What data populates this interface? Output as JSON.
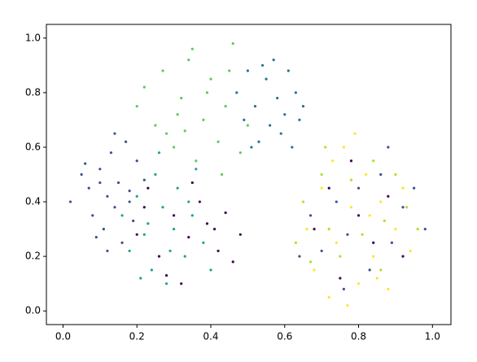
{
  "chart_data": {
    "type": "scatter",
    "xlim": [
      -0.045,
      1.05
    ],
    "ylim": [
      -0.05,
      1.05
    ],
    "xticks": [
      {
        "value": 0,
        "label": "0.0"
      },
      0.2,
      0.4,
      0.6,
      0.8,
      {
        "value": 1,
        "label": "1.0"
      }
    ],
    "yticks": [
      {
        "value": 0,
        "label": "0.0"
      },
      0.2,
      0.4,
      0.6,
      0.8,
      {
        "value": 1,
        "label": "1.0"
      }
    ],
    "series": [
      {
        "color": "#3b528b",
        "x": [
          0.02,
          0.05,
          0.07,
          0.08,
          0.1,
          0.11,
          0.12,
          0.13,
          0.14,
          0.15,
          0.16,
          0.17,
          0.18,
          0.19,
          0.2,
          0.22,
          0.09,
          0.06,
          0.14,
          0.12,
          0.18,
          0.1
        ],
        "y": [
          0.4,
          0.5,
          0.45,
          0.35,
          0.52,
          0.3,
          0.42,
          0.58,
          0.38,
          0.47,
          0.25,
          0.62,
          0.44,
          0.33,
          0.55,
          0.48,
          0.27,
          0.54,
          0.65,
          0.22,
          0.4,
          0.47
        ]
      },
      {
        "color": "#20a386",
        "x": [
          0.16,
          0.18,
          0.2,
          0.22,
          0.24,
          0.25,
          0.27,
          0.28,
          0.3,
          0.31,
          0.33,
          0.35,
          0.36,
          0.38,
          0.4,
          0.26,
          0.23,
          0.29,
          0.34,
          0.21
        ],
        "y": [
          0.35,
          0.22,
          0.42,
          0.28,
          0.15,
          0.5,
          0.38,
          0.1,
          0.3,
          0.45,
          0.2,
          0.35,
          0.52,
          0.25,
          0.15,
          0.58,
          0.32,
          0.22,
          0.4,
          0.12
        ]
      },
      {
        "color": "#440154",
        "x": [
          0.2,
          0.23,
          0.26,
          0.3,
          0.32,
          0.34,
          0.37,
          0.39,
          0.42,
          0.44,
          0.46,
          0.48,
          0.35,
          0.28,
          0.41,
          0.22,
          0.68,
          0.72,
          0.75,
          0.8,
          0.84,
          0.88,
          0.92,
          0.78
        ],
        "y": [
          0.28,
          0.45,
          0.2,
          0.35,
          0.1,
          0.27,
          0.4,
          0.32,
          0.22,
          0.36,
          0.18,
          0.28,
          0.47,
          0.13,
          0.3,
          0.38,
          0.3,
          0.45,
          0.12,
          0.35,
          0.25,
          0.42,
          0.2,
          0.55
        ]
      },
      {
        "color": "#5ec962",
        "x": [
          0.2,
          0.22,
          0.25,
          0.27,
          0.3,
          0.32,
          0.34,
          0.36,
          0.38,
          0.4,
          0.42,
          0.44,
          0.46,
          0.48,
          0.5,
          0.35,
          0.31,
          0.43,
          0.39,
          0.28,
          0.45,
          0.33
        ],
        "y": [
          0.75,
          0.82,
          0.68,
          0.88,
          0.6,
          0.78,
          0.92,
          0.55,
          0.7,
          0.85,
          0.62,
          0.75,
          0.98,
          0.58,
          0.68,
          0.96,
          0.72,
          0.5,
          0.8,
          0.65,
          0.88,
          0.66
        ]
      },
      {
        "color": "#2c728e",
        "x": [
          0.47,
          0.49,
          0.5,
          0.52,
          0.53,
          0.55,
          0.56,
          0.57,
          0.58,
          0.6,
          0.61,
          0.62,
          0.63,
          0.65,
          0.54,
          0.59,
          0.51,
          0.64
        ],
        "y": [
          0.8,
          0.7,
          0.88,
          0.75,
          0.62,
          0.85,
          0.68,
          0.92,
          0.78,
          0.72,
          0.88,
          0.6,
          0.8,
          0.75,
          0.9,
          0.65,
          0.6,
          0.7
        ]
      },
      {
        "color": "#fde725",
        "x": [
          0.66,
          0.68,
          0.7,
          0.72,
          0.74,
          0.76,
          0.78,
          0.8,
          0.82,
          0.84,
          0.86,
          0.88,
          0.9,
          0.92,
          0.94,
          0.79,
          0.73,
          0.85,
          0.77,
          0.83
        ],
        "y": [
          0.3,
          0.15,
          0.45,
          0.05,
          0.25,
          0.6,
          0.38,
          0.1,
          0.5,
          0.2,
          0.4,
          0.08,
          0.3,
          0.45,
          0.22,
          0.65,
          0.55,
          0.12,
          0.02,
          0.35
        ]
      },
      {
        "color": "#b5de2b",
        "x": [
          0.63,
          0.65,
          0.67,
          0.7,
          0.72,
          0.75,
          0.78,
          0.81,
          0.84,
          0.87,
          0.9,
          0.93,
          0.96,
          0.71,
          0.86
        ],
        "y": [
          0.25,
          0.4,
          0.18,
          0.5,
          0.3,
          0.2,
          0.48,
          0.28,
          0.55,
          0.33,
          0.5,
          0.38,
          0.3,
          0.6,
          0.15
        ]
      },
      {
        "color": "#3b528b",
        "x": [
          0.64,
          0.67,
          0.7,
          0.74,
          0.77,
          0.8,
          0.83,
          0.86,
          0.89,
          0.92,
          0.95,
          0.98,
          0.76,
          0.88
        ],
        "y": [
          0.2,
          0.35,
          0.22,
          0.4,
          0.28,
          0.45,
          0.15,
          0.5,
          0.25,
          0.38,
          0.45,
          0.3,
          0.08,
          0.6
        ]
      }
    ]
  }
}
